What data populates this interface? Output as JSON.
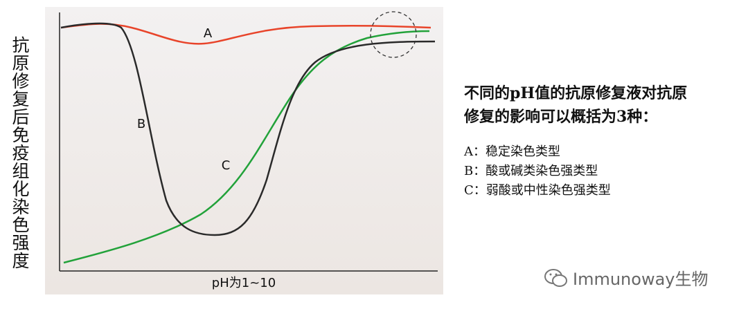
{
  "diagram": {
    "y_axis_label": "抗原修复后免疫组化染色强度",
    "x_axis_label": "pH为1~10",
    "curves": [
      {
        "label": "A"
      },
      {
        "label": "B"
      },
      {
        "label": "C"
      }
    ],
    "title_lines": [
      "不同的pH值的抗原修复液对抗原",
      "修复的影响可以概括为3种："
    ],
    "items": [
      "A：稳定染色类型",
      "B：酸或碱类染色强类型",
      "C：弱酸或中性染色强类型"
    ],
    "watermark": "Immunoway生物"
  }
}
